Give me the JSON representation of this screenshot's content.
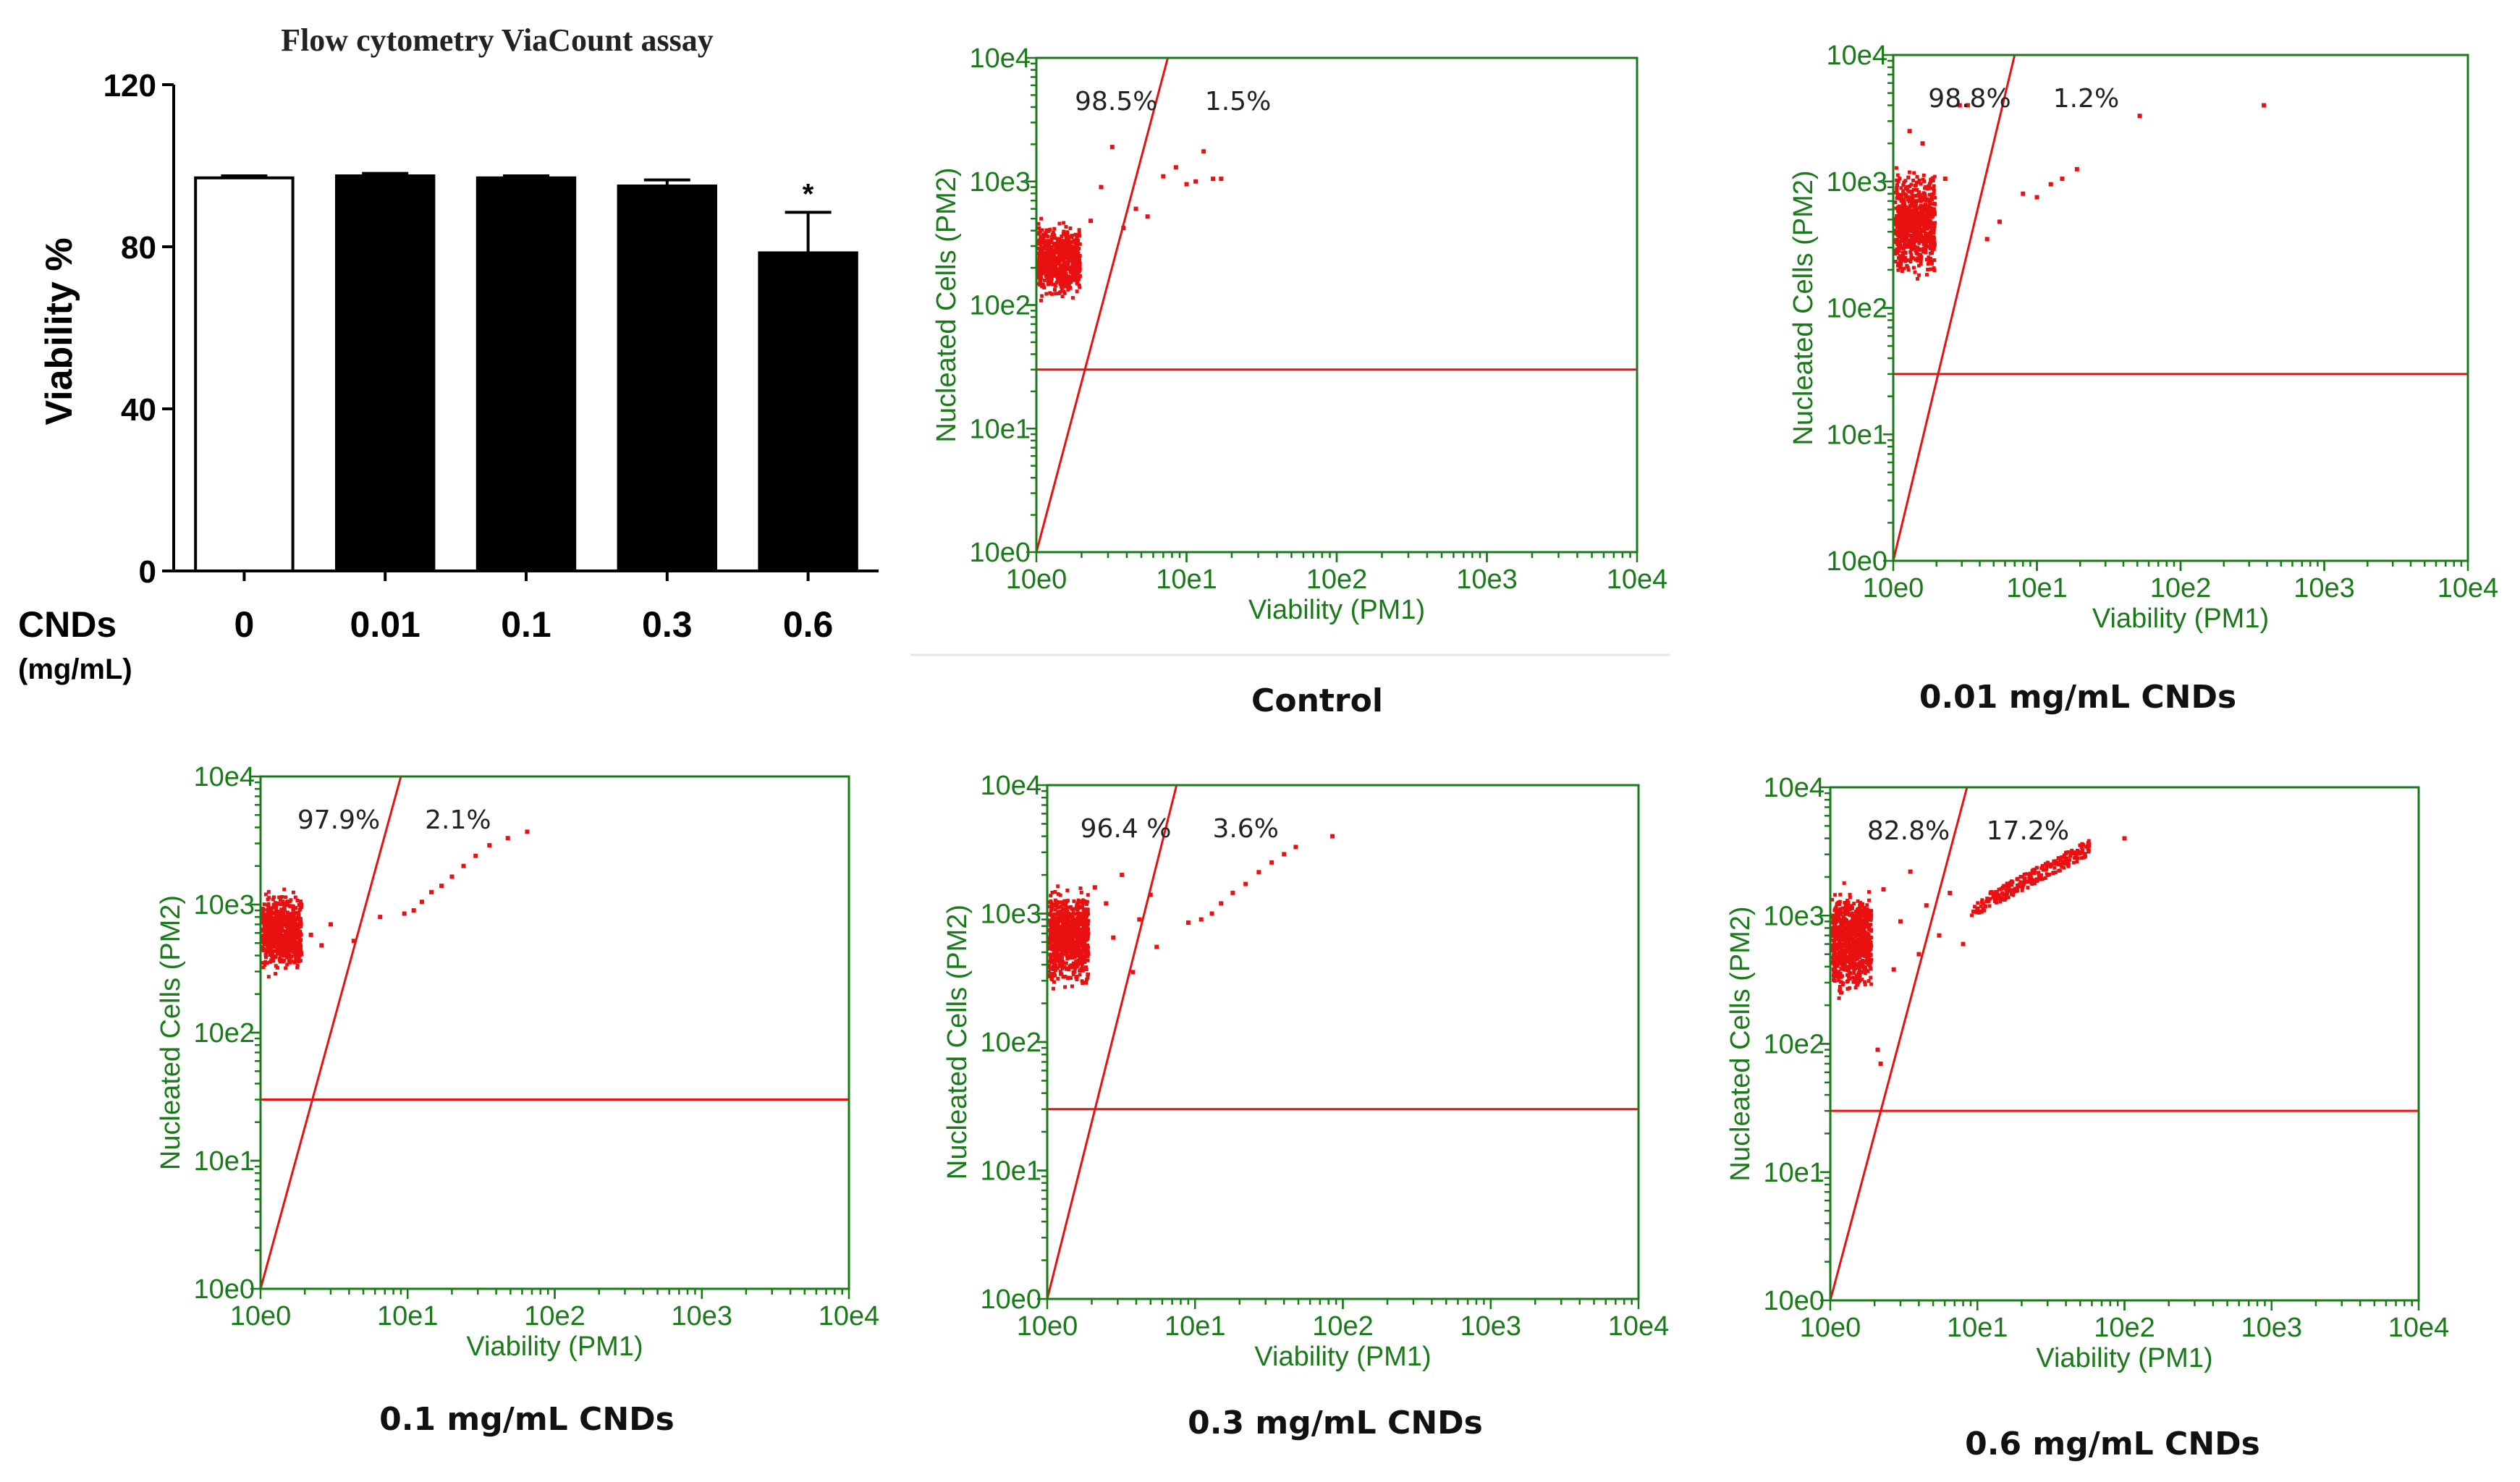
{
  "chart_data": [
    {
      "type": "bar",
      "title": "Flow cytometry ViaCount assay",
      "ylabel": "Viability %",
      "xlabel": "CNDs",
      "xlabel_unit": "(mg/mL)",
      "categories": [
        "0",
        "0.01",
        "0.1",
        "0.3",
        "0.6"
      ],
      "values": [
        97,
        97.5,
        97,
        95,
        78.5
      ],
      "errors": [
        0.5,
        0.6,
        0.5,
        1.5,
        10
      ],
      "significance": [
        "",
        "",
        "",
        "",
        "*"
      ],
      "bar_fill": [
        "#ffffff",
        "#000000",
        "#000000",
        "#000000",
        "#000000"
      ],
      "ylim": [
        0,
        120
      ],
      "yticks": [
        "0",
        "40",
        "80",
        "120"
      ],
      "ytick_values": [
        0,
        40,
        80,
        120
      ]
    },
    {
      "type": "scatter",
      "caption": "Control",
      "xlabel": "Viability (PM1)",
      "ylabel": "Nucleated Cells (PM2)",
      "ticks": [
        "10e0",
        "10e1",
        "10e2",
        "10e3",
        "10e4"
      ],
      "live_pct": "98.5%",
      "dead_pct": "1.5%",
      "gate_line": {
        "x1": 1,
        "y1": 1,
        "x2": 7.5,
        "y2": 10000
      },
      "threshold": 30,
      "cluster": {
        "x": [
          1,
          1.9
        ],
        "y": [
          100,
          520
        ],
        "n": 650
      },
      "stragglers": [
        [
          2.3,
          480
        ],
        [
          2.7,
          900
        ],
        [
          3.2,
          1900
        ],
        [
          3.8,
          420
        ],
        [
          4.6,
          600
        ],
        [
          5.5,
          520
        ],
        [
          7,
          1100
        ],
        [
          8.5,
          1300
        ],
        [
          10,
          950
        ],
        [
          11.5,
          1000
        ],
        [
          13,
          1750
        ],
        [
          15,
          1050
        ],
        [
          17,
          1050
        ]
      ]
    },
    {
      "type": "scatter",
      "caption": "0.01 mg/mL CNDs",
      "xlabel": "Viability (PM1)",
      "ylabel": "Nucleated Cells (PM2)",
      "ticks": [
        "10e0",
        "10e1",
        "10e2",
        "10e3",
        "10e4"
      ],
      "live_pct": "98.8%",
      "dead_pct": "1.2%",
      "gate_line": {
        "x1": 1,
        "y1": 1,
        "x2": 7,
        "y2": 10000
      },
      "threshold": 30,
      "cluster": {
        "x": [
          1,
          1.9
        ],
        "y": [
          150,
          1500
        ],
        "n": 750
      },
      "stragglers": [
        [
          1.3,
          2500
        ],
        [
          1.6,
          2000
        ],
        [
          2.3,
          1050
        ],
        [
          2.9,
          4000
        ],
        [
          3.3,
          4000
        ],
        [
          4.5,
          350
        ],
        [
          5.5,
          480
        ],
        [
          8,
          800
        ],
        [
          10,
          750
        ],
        [
          12.5,
          950
        ],
        [
          15,
          1050
        ],
        [
          19,
          1250
        ],
        [
          52,
          3300
        ],
        [
          380,
          4000
        ]
      ]
    },
    {
      "type": "scatter",
      "caption": "0.1 mg/mL CNDs",
      "xlabel": "Viability (PM1)",
      "ylabel": "Nucleated Cells (PM2)",
      "ticks": [
        "10e0",
        "10e1",
        "10e2",
        "10e3",
        "10e4"
      ],
      "live_pct": "97.9%",
      "dead_pct": "2.1%",
      "gate_line": {
        "x1": 1,
        "y1": 1,
        "x2": 9,
        "y2": 10000
      },
      "threshold": 30,
      "cluster": {
        "x": [
          1,
          1.85
        ],
        "y": [
          260,
          1400
        ],
        "n": 750
      },
      "stragglers": [
        [
          2.2,
          580
        ],
        [
          2.6,
          480
        ],
        [
          3,
          700
        ],
        [
          4.3,
          520
        ],
        [
          6.5,
          800
        ],
        [
          9.5,
          850
        ],
        [
          11,
          900
        ],
        [
          12.5,
          1050
        ],
        [
          14.5,
          1250
        ],
        [
          17,
          1400
        ],
        [
          20,
          1650
        ],
        [
          24,
          2000
        ],
        [
          29,
          2400
        ],
        [
          36,
          2900
        ],
        [
          48,
          3300
        ],
        [
          65,
          3700
        ]
      ]
    },
    {
      "type": "scatter",
      "caption": "0.3 mg/mL CNDs",
      "xlabel": "Viability (PM1)",
      "ylabel": "Nucleated Cells (PM2)",
      "ticks": [
        "10e0",
        "10e1",
        "10e2",
        "10e3",
        "10e4"
      ],
      "live_pct": "96.4 %",
      "dead_pct": "3.6%",
      "gate_line": {
        "x1": 1,
        "y1": 1,
        "x2": 7.5,
        "y2": 10000
      },
      "threshold": 30,
      "cluster": {
        "x": [
          1,
          1.85
        ],
        "y": [
          230,
          1800
        ],
        "n": 800
      },
      "stragglers": [
        [
          2.1,
          1600
        ],
        [
          2.5,
          1200
        ],
        [
          2.8,
          650
        ],
        [
          3.2,
          2000
        ],
        [
          3.8,
          350
        ],
        [
          4.2,
          900
        ],
        [
          5,
          1400
        ],
        [
          5.5,
          550
        ],
        [
          9,
          850
        ],
        [
          11,
          900
        ],
        [
          13,
          1000
        ],
        [
          15,
          1200
        ],
        [
          18,
          1450
        ],
        [
          22,
          1700
        ],
        [
          27,
          2100
        ],
        [
          33,
          2500
        ],
        [
          40,
          2900
        ],
        [
          48,
          3300
        ],
        [
          85,
          4000
        ]
      ]
    },
    {
      "type": "scatter",
      "caption": "0.6 mg/mL CNDs",
      "xlabel": "Viability (PM1)",
      "ylabel": "Nucleated Cells (PM2)",
      "ticks": [
        "10e0",
        "10e1",
        "10e2",
        "10e3",
        "10e4"
      ],
      "live_pct": "82.8%",
      "dead_pct": "17.2%",
      "gate_line": {
        "x1": 1,
        "y1": 1,
        "x2": 8.5,
        "y2": 10000
      },
      "threshold": 30,
      "cluster": {
        "x": [
          1,
          1.85
        ],
        "y": [
          210,
          2000
        ],
        "n": 850
      },
      "stragglers": [
        [
          2.1,
          90
        ],
        [
          2.2,
          70
        ],
        [
          2.3,
          1600
        ],
        [
          2.7,
          380
        ],
        [
          3,
          900
        ],
        [
          3.5,
          2200
        ],
        [
          4,
          500
        ],
        [
          4.5,
          1200
        ],
        [
          5.5,
          700
        ],
        [
          6.5,
          1500
        ],
        [
          8,
          600
        ],
        [
          10,
          1100
        ],
        [
          100,
          4000
        ]
      ],
      "band": {
        "x": [
          9,
          58
        ],
        "n": 260
      }
    }
  ]
}
